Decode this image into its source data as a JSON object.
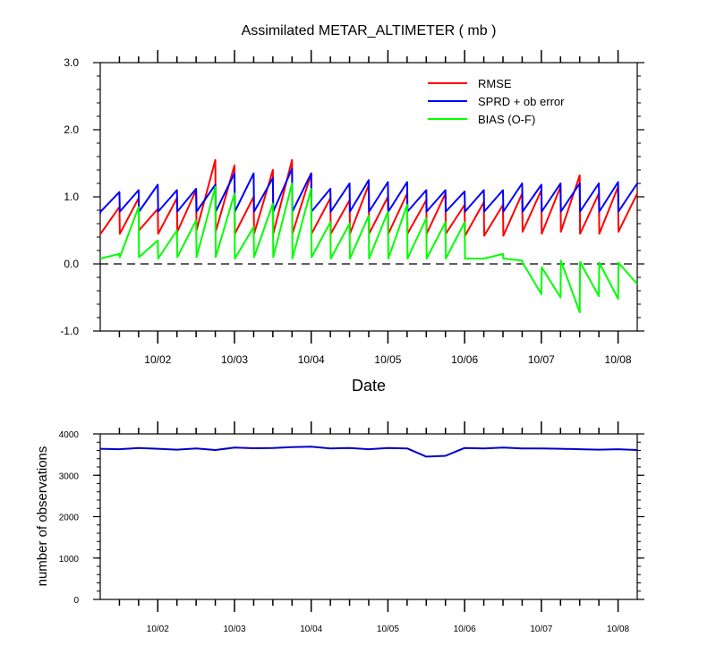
{
  "chart_data": [
    {
      "type": "line",
      "title": "Assimilated METAR_ALTIMETER ( mb )",
      "xlabel": "Date",
      "ylabel": "",
      "ylim": [
        -1.0,
        3.0
      ],
      "yticks": [
        "3.0",
        "2.0",
        "1.0",
        "0.0",
        "-1.0"
      ],
      "xlim": [
        0.0,
        7.0
      ],
      "xtick_labels": [
        "10/02",
        "10/03",
        "10/04",
        "10/05",
        "10/06",
        "10/07",
        "10/08"
      ],
      "legend_position": "top-right",
      "zero_line": "dashed",
      "series": [
        {
          "name": "RMSE",
          "color": "#ff0000",
          "x": [
            0.0,
            0.005,
            0.25,
            0.255,
            0.5,
            0.505,
            0.75,
            0.755,
            1.0,
            1.005,
            1.25,
            1.255,
            1.5,
            1.505,
            1.75,
            1.755,
            2.0,
            2.005,
            2.25,
            2.255,
            2.5,
            2.505,
            2.75,
            2.755,
            3.0,
            3.005,
            3.25,
            3.255,
            3.5,
            3.505,
            3.75,
            3.755,
            4.0,
            4.005,
            4.25,
            4.255,
            4.5,
            4.505,
            4.75,
            4.755,
            5.0,
            5.005,
            5.25,
            5.255,
            5.5,
            5.505,
            5.75,
            5.755,
            6.0,
            6.005,
            6.25,
            6.255,
            6.5,
            6.505,
            6.75,
            6.755,
            7.0
          ],
          "y": [
            0.45,
            0.45,
            0.85,
            0.45,
            0.98,
            0.5,
            0.82,
            0.45,
            0.98,
            0.48,
            1.1,
            0.5,
            1.55,
            0.48,
            1.47,
            0.45,
            1.0,
            0.45,
            1.4,
            0.45,
            1.55,
            0.45,
            1.35,
            0.45,
            0.98,
            0.45,
            0.95,
            0.45,
            1.18,
            0.45,
            1.0,
            0.45,
            1.05,
            0.45,
            0.95,
            0.45,
            1.05,
            0.45,
            0.88,
            0.42,
            0.92,
            0.42,
            0.88,
            0.42,
            1.05,
            0.48,
            1.1,
            0.45,
            1.15,
            0.48,
            1.32,
            0.45,
            1.05,
            0.45,
            1.15,
            0.48,
            1.05
          ]
        },
        {
          "name": "SPRD + ob error",
          "color": "#0000ff",
          "x": [
            0.0,
            0.005,
            0.25,
            0.255,
            0.5,
            0.505,
            0.75,
            0.755,
            1.0,
            1.005,
            1.25,
            1.255,
            1.5,
            1.505,
            1.75,
            1.755,
            2.0,
            2.005,
            2.25,
            2.255,
            2.5,
            2.505,
            2.75,
            2.755,
            3.0,
            3.005,
            3.25,
            3.255,
            3.5,
            3.505,
            3.75,
            3.755,
            4.0,
            4.005,
            4.25,
            4.255,
            4.5,
            4.505,
            4.75,
            4.755,
            5.0,
            5.005,
            5.25,
            5.255,
            5.5,
            5.505,
            5.75,
            5.755,
            6.0,
            6.005,
            6.25,
            6.255,
            6.5,
            6.505,
            6.75,
            6.755,
            7.0
          ],
          "y": [
            0.75,
            0.78,
            1.07,
            0.78,
            1.1,
            0.78,
            1.18,
            0.78,
            1.1,
            0.78,
            1.12,
            0.78,
            1.18,
            0.78,
            1.35,
            0.78,
            1.35,
            0.78,
            1.28,
            0.78,
            1.42,
            0.78,
            1.35,
            0.78,
            1.12,
            0.78,
            1.2,
            0.78,
            1.25,
            0.78,
            1.22,
            0.78,
            1.22,
            0.78,
            1.1,
            0.78,
            1.1,
            0.78,
            1.08,
            0.78,
            1.1,
            0.78,
            1.1,
            0.78,
            1.2,
            0.78,
            1.18,
            0.78,
            1.2,
            0.78,
            1.2,
            0.78,
            1.2,
            0.78,
            1.22,
            0.78,
            1.2
          ]
        },
        {
          "name": "BIAS (O-F)",
          "color": "#00ff00",
          "x": [
            0.0,
            0.005,
            0.25,
            0.255,
            0.5,
            0.505,
            0.75,
            0.755,
            1.0,
            1.005,
            1.25,
            1.255,
            1.5,
            1.505,
            1.75,
            1.755,
            2.0,
            2.005,
            2.25,
            2.255,
            2.5,
            2.505,
            2.75,
            2.755,
            3.0,
            3.005,
            3.25,
            3.255,
            3.5,
            3.505,
            3.75,
            3.755,
            4.0,
            4.005,
            4.25,
            4.255,
            4.5,
            4.505,
            4.75,
            4.755,
            5.0,
            5.005,
            5.25,
            5.255,
            5.5,
            5.505,
            5.75,
            5.755,
            6.0,
            6.005,
            6.25,
            6.255,
            6.5,
            6.505,
            6.75,
            6.755,
            7.0
          ],
          "y": [
            0.08,
            0.08,
            0.15,
            0.1,
            0.85,
            0.1,
            0.35,
            0.08,
            0.5,
            0.1,
            0.65,
            0.1,
            1.15,
            0.1,
            1.05,
            0.08,
            0.55,
            0.1,
            0.9,
            0.1,
            1.2,
            0.08,
            1.12,
            0.1,
            0.62,
            0.08,
            0.6,
            0.08,
            0.72,
            0.08,
            0.78,
            0.08,
            0.88,
            0.08,
            0.68,
            0.08,
            0.62,
            0.08,
            0.62,
            0.08,
            0.08,
            0.08,
            0.15,
            0.08,
            0.05,
            0.02,
            -0.45,
            -0.05,
            -0.5,
            0.05,
            -0.72,
            0.03,
            -0.48,
            0.02,
            -0.52,
            0.02,
            -0.3
          ]
        }
      ]
    },
    {
      "type": "line",
      "title": "",
      "xlabel": "",
      "ylabel": "number of observations",
      "ylim": [
        0,
        4000
      ],
      "yticks": [
        "4000",
        "3000",
        "2000",
        "1000",
        "0"
      ],
      "xlim": [
        0.0,
        7.0
      ],
      "xtick_labels": [
        "10/02",
        "10/03",
        "10/04",
        "10/05",
        "10/06",
        "10/07",
        "10/08"
      ],
      "series": [
        {
          "color": "#0000cd",
          "x": [
            0.0,
            0.25,
            0.5,
            0.75,
            1.0,
            1.25,
            1.5,
            1.75,
            2.0,
            2.25,
            2.5,
            2.75,
            3.0,
            3.25,
            3.5,
            3.75,
            4.0,
            4.25,
            4.5,
            4.75,
            5.0,
            5.25,
            5.5,
            5.75,
            6.0,
            6.25,
            6.5,
            6.75,
            7.0
          ],
          "y": [
            3640,
            3630,
            3660,
            3640,
            3620,
            3650,
            3610,
            3670,
            3655,
            3660,
            3680,
            3690,
            3650,
            3660,
            3630,
            3660,
            3650,
            3450,
            3470,
            3660,
            3650,
            3670,
            3650,
            3650,
            3640,
            3630,
            3620,
            3630,
            3610
          ]
        }
      ]
    }
  ]
}
